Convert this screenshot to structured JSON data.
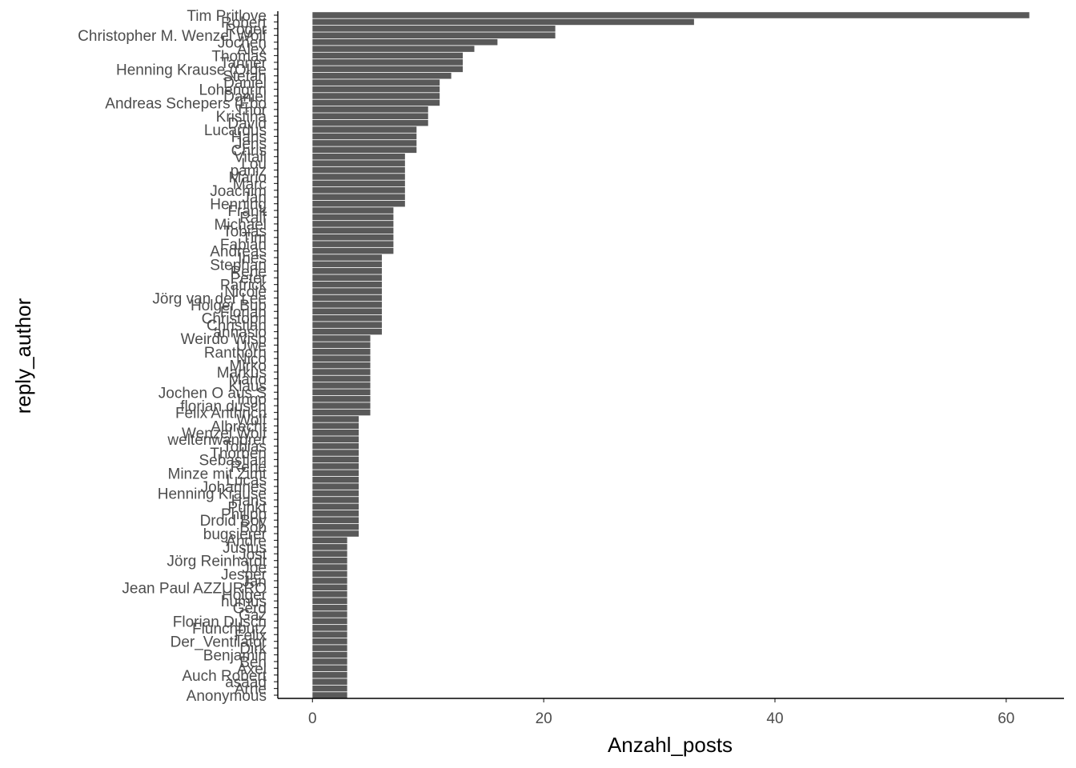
{
  "chart_data": {
    "type": "bar",
    "orientation": "horizontal",
    "xlabel": "Anzahl_posts",
    "ylabel": "reply_author",
    "xlim": [
      -3,
      65
    ],
    "x_ticks": [
      0,
      20,
      40,
      60
    ],
    "grid": false,
    "bar_color": "#595959",
    "categories": [
      "Tim Pritlove",
      "Robert",
      "Roger",
      "Christopher M. Wenzel Wolf",
      "Jochen",
      "Alex",
      "Thomas",
      "Tanner",
      "Henning Krause (Olde",
      "Stefan",
      "Daniel",
      "Lohengrin",
      "Daniel",
      "Andreas Schepers (Ebo",
      "Thor",
      "Kristina",
      "David",
      "Lucardus",
      "Hans",
      "Jens",
      "Chris",
      "Vitali",
      "Lou",
      "paniz",
      "Mario",
      "Marc",
      "Joachim",
      "Jan",
      "Henning",
      "Frank",
      "Ralf",
      "Michael",
      "Tobias",
      "Tim",
      "Fabian",
      "Andreas",
      "Ines",
      "Stephan",
      "Rene",
      "Peter",
      "Patrick",
      "Nicole",
      "Jörg van der Lee",
      "Holger Bub",
      "Florian",
      "Christoph",
      "Christian",
      "annasio",
      "Weirdo Wisp",
      "Uwe",
      "Ranthorn",
      "Nico",
      "Mirko",
      "Markus",
      "Mario",
      "Klaus",
      "Jochen O aus S",
      "Ingo",
      "florian dusch",
      "Felix Anthrich",
      "Wolf",
      "Albrecht",
      "Wenzel Wolf",
      "weltenwandrer",
      "Tobias",
      "Thorben",
      "Sebastian",
      "René",
      "Minze mit Zimt",
      "Lucas",
      "Johannes",
      "Henning Krause",
      "Hans",
      "Punkt",
      "Philipp",
      "Droid Boy",
      "Bob",
      "bugsierer",
      "Andre",
      "Justus",
      "Jost",
      "Jörg Reinhardt",
      "Joe",
      "Jesper",
      "Jan",
      "Jean Paul AZZURRO",
      "Holger",
      "humus",
      "Gerd",
      "Gaz",
      "Florian Dusch",
      "Flunchbutz",
      "Felix",
      "Der_Ventilator",
      "Dirk",
      "Benjamin",
      "Ben",
      "Axel",
      "Auch Robert",
      "asaad",
      "Arne",
      "Anonymous"
    ],
    "values": [
      62,
      33,
      21,
      21,
      16,
      14,
      13,
      13,
      13,
      12,
      11,
      11,
      11,
      11,
      10,
      10,
      10,
      9,
      9,
      9,
      9,
      8,
      8,
      8,
      8,
      8,
      8,
      8,
      8,
      7,
      7,
      7,
      7,
      7,
      7,
      7,
      6,
      6,
      6,
      6,
      6,
      6,
      6,
      6,
      6,
      6,
      6,
      6,
      5,
      5,
      5,
      5,
      5,
      5,
      5,
      5,
      5,
      5,
      5,
      5,
      4,
      4,
      4,
      4,
      4,
      4,
      4,
      4,
      4,
      4,
      4,
      4,
      4,
      4,
      4,
      4,
      4,
      4,
      3,
      3,
      3,
      3,
      3,
      3,
      3,
      3,
      3,
      3,
      3,
      3,
      3,
      3,
      3,
      3,
      3,
      3,
      3,
      3,
      3,
      3,
      3,
      3
    ]
  }
}
